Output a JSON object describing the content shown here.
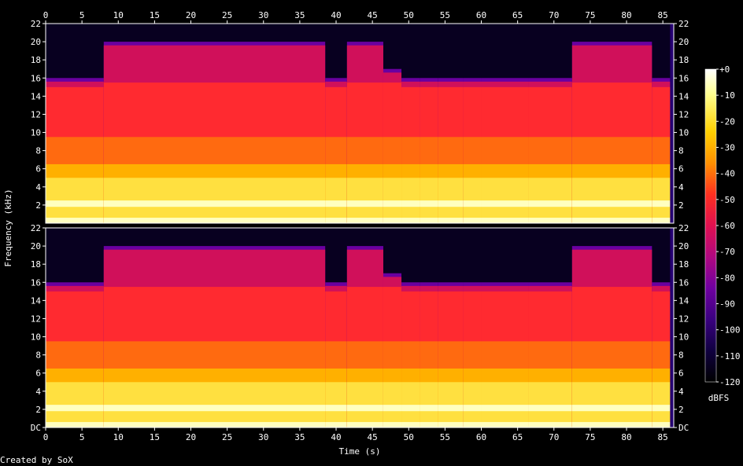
{
  "chart_data": {
    "type": "heatmap",
    "title": "",
    "xlabel": "Time (s)",
    "ylabel": "Frequency (kHz)",
    "xlim": [
      0,
      86.5
    ],
    "ylim": [
      0,
      22
    ],
    "x_ticks": [
      "0",
      "5",
      "10",
      "15",
      "20",
      "25",
      "30",
      "35",
      "40",
      "45",
      "50",
      "55",
      "60",
      "65",
      "70",
      "75",
      "80",
      "85"
    ],
    "y_ticks_top": [
      "22",
      "20",
      "18",
      "16",
      "14",
      "12",
      "10",
      "8",
      "6",
      "4",
      "2"
    ],
    "y_ticks_bottom": [
      "22",
      "20",
      "18",
      "16",
      "14",
      "12",
      "10",
      "8",
      "6",
      "4",
      "2",
      "DC"
    ],
    "channels": 2,
    "colorbar": {
      "label": "dBFS",
      "ticks": [
        "+0",
        "-10",
        "-20",
        "-30",
        "-40",
        "-50",
        "-60",
        "-70",
        "-80",
        "-90",
        "-100",
        "-110",
        "-120"
      ],
      "range": [
        -120,
        0
      ]
    },
    "segments": [
      {
        "start": 0,
        "end": 8,
        "cutoff_khz": 16
      },
      {
        "start": 8,
        "end": 38.5,
        "cutoff_khz": 20
      },
      {
        "start": 38.5,
        "end": 41.5,
        "cutoff_khz": 16
      },
      {
        "start": 41.5,
        "end": 46.5,
        "cutoff_khz": 20
      },
      {
        "start": 46.5,
        "end": 49,
        "cutoff_khz": 17
      },
      {
        "start": 49,
        "end": 51.5,
        "cutoff_khz": 16
      },
      {
        "start": 51.5,
        "end": 54,
        "cutoff_khz": 16
      },
      {
        "start": 54,
        "end": 57.5,
        "cutoff_khz": 16
      },
      {
        "start": 57.5,
        "end": 60,
        "cutoff_khz": 16
      },
      {
        "start": 60,
        "end": 66.5,
        "cutoff_khz": 16
      },
      {
        "start": 66.5,
        "end": 72.5,
        "cutoff_khz": 16
      },
      {
        "start": 72.5,
        "end": 83.5,
        "cutoff_khz": 20
      },
      {
        "start": 83.5,
        "end": 86,
        "cutoff_khz": 16
      }
    ],
    "colors": {
      "background": "#000000",
      "bands": [
        "#ffffc0",
        "#ffe040",
        "#ffb000",
        "#ff6a10",
        "#ff2a30",
        "#d0105a",
        "#6a00a0",
        "#240070",
        "#080020"
      ]
    }
  },
  "footer": {
    "credit": "Created by SoX"
  }
}
